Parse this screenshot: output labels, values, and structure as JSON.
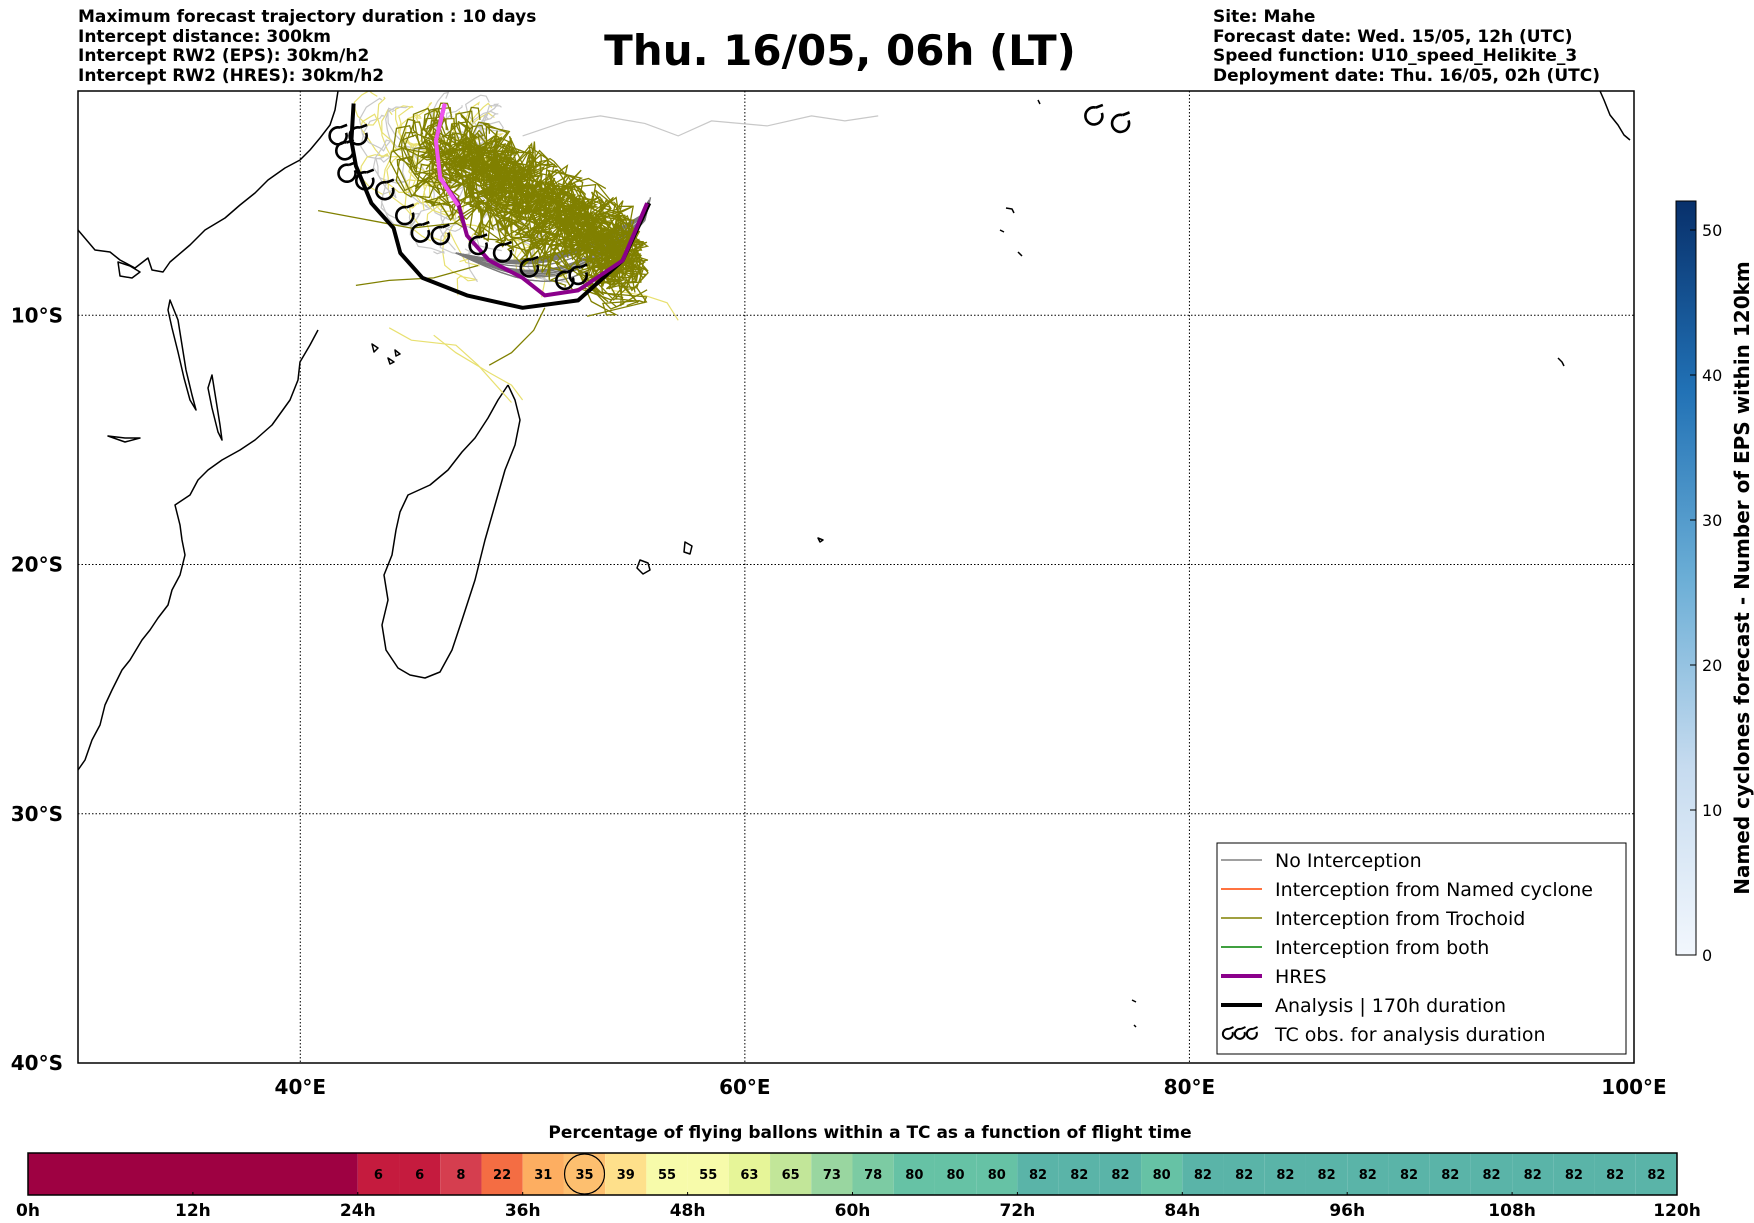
{
  "header": {
    "left": [
      "Maximum forecast trajectory duration : 10 days",
      "Intercept distance: 300km",
      "Intercept RW2 (EPS):  30km/h2",
      "Intercept RW2 (HRES): 30km/h2"
    ],
    "title": "Thu. 16/05, 06h (LT)",
    "right": [
      "Site: Mahe",
      "Forecast date: Wed. 15/05, 12h (UTC)",
      "Speed function: U10_speed_Helikite_3",
      "Deployment date: Thu. 16/05, 02h (UTC)"
    ]
  },
  "map": {
    "lon_range": [
      30,
      100
    ],
    "lat_range": [
      -40,
      -1
    ],
    "lat_ticks": [
      {
        "value": -10,
        "label": "10°S"
      },
      {
        "value": -20,
        "label": "20°S"
      },
      {
        "value": -30,
        "label": "30°S"
      },
      {
        "value": -40,
        "label": "40°S"
      }
    ],
    "lon_ticks": [
      {
        "value": 40,
        "label": "40°E"
      },
      {
        "value": 60,
        "label": "60°E"
      },
      {
        "value": 80,
        "label": "80°E"
      },
      {
        "value": 100,
        "label": "100°E"
      }
    ],
    "grid": true,
    "analysis_track": [
      [
        42.4,
        -1.5
      ],
      [
        42.3,
        -3
      ],
      [
        42.5,
        -4
      ],
      [
        43.2,
        -5.5
      ],
      [
        44.2,
        -6.5
      ],
      [
        44.5,
        -7.5
      ],
      [
        45.5,
        -8.5
      ],
      [
        47.5,
        -9.2
      ],
      [
        50,
        -9.7
      ],
      [
        52.5,
        -9.4
      ],
      [
        54.5,
        -7.8
      ],
      [
        55.7,
        -5.5
      ]
    ],
    "hres_track": [
      [
        46.5,
        -1.5
      ],
      [
        46.1,
        -3
      ],
      [
        46.3,
        -4.5
      ],
      [
        47.1,
        -5.5
      ],
      [
        47.5,
        -6.8
      ],
      [
        48.5,
        -7.8
      ],
      [
        50,
        -8.5
      ],
      [
        51,
        -9.2
      ],
      [
        52.5,
        -9
      ],
      [
        54.5,
        -7.8
      ],
      [
        55.6,
        -5.5
      ]
    ],
    "hres_pink": [
      [
        46.5,
        -1.5
      ],
      [
        46.1,
        -3
      ],
      [
        46.3,
        -4.5
      ],
      [
        47.1,
        -5.6
      ]
    ],
    "tc_obs": [
      [
        41.7,
        -2.8
      ],
      [
        42.6,
        -2.8
      ],
      [
        42,
        -3.4
      ],
      [
        42.1,
        -4.3
      ],
      [
        42.9,
        -4.6
      ],
      [
        43.8,
        -5
      ],
      [
        44.7,
        -6
      ],
      [
        45.4,
        -6.7
      ],
      [
        46.3,
        -6.8
      ],
      [
        48,
        -7.2
      ],
      [
        49.1,
        -7.5
      ],
      [
        50.3,
        -8.1
      ],
      [
        51.9,
        -8.6
      ],
      [
        52.5,
        -8.4
      ],
      [
        75.7,
        -2
      ],
      [
        76.9,
        -2.3
      ]
    ],
    "colors": {
      "no_interception": "#808080",
      "named_cyclone": "#ff4500",
      "trochoid": "#808000",
      "both": "#008000",
      "hres": "#8b008b",
      "hres_start": "#ee55ee",
      "analysis": "#000000",
      "light_grey": "#c8c8c8",
      "light_yellow": "#e8e070"
    }
  },
  "legend": {
    "items": [
      {
        "label": "No Interception",
        "color": "#808080",
        "width": 1.5
      },
      {
        "label": "Interception from Named cyclone",
        "color": "#ff4500",
        "width": 1.5
      },
      {
        "label": "Interception from Trochoid",
        "color": "#808000",
        "width": 1.5
      },
      {
        "label": "Interception from both",
        "color": "#008000",
        "width": 1.5
      },
      {
        "label": "HRES",
        "color": "#8b008b",
        "width": 4
      },
      {
        "label": "Analysis | 170h duration",
        "color": "#000000",
        "width": 4
      },
      {
        "label": "TC obs. for analysis duration",
        "color": "",
        "width": 0
      }
    ]
  },
  "colorbar": {
    "label": "Named cyclones forecast - Number of EPS within 120km",
    "min": 0,
    "max": 52,
    "ticks": [
      0,
      10,
      20,
      30,
      40,
      50
    ],
    "color_low": "#f2f7fd",
    "color_high": "#08306b"
  },
  "flight_bar": {
    "title": "Percentage of flying ballons within a TC as a function of flight time",
    "start_hours": 24,
    "step_hours": 3,
    "values": [
      6,
      6,
      8,
      22,
      31,
      35,
      39,
      55,
      55,
      63,
      65,
      73,
      78,
      80,
      80,
      80,
      82,
      82,
      82,
      80,
      82,
      82,
      82,
      82,
      82,
      82,
      82,
      82,
      82,
      82,
      82,
      82
    ],
    "highlight_index": 5,
    "empty_color": "#9e0142",
    "time_labels": [
      "0h",
      "12h",
      "24h",
      "36h",
      "48h",
      "60h",
      "72h",
      "84h",
      "96h",
      "108h",
      "120h"
    ]
  }
}
